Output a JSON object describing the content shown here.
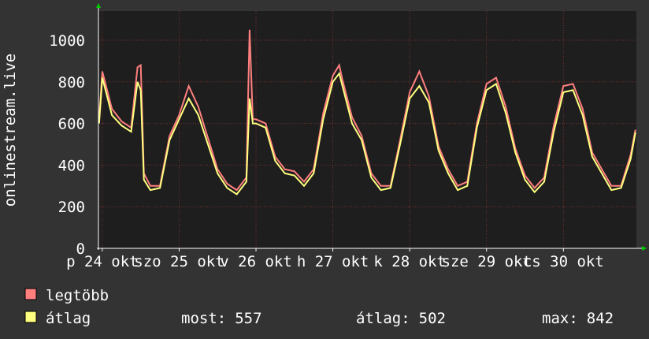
{
  "chart_data": {
    "type": "line",
    "ylabel": "onlinestream.live",
    "x": [
      -1,
      0,
      3,
      6,
      9,
      11,
      12,
      13,
      15,
      18,
      21,
      24,
      27,
      30,
      33,
      36,
      39,
      42,
      45,
      46,
      47,
      48,
      51,
      54,
      57,
      60,
      63,
      66,
      69,
      72,
      74,
      75,
      78,
      81,
      84,
      87,
      90,
      93,
      96,
      99,
      102,
      105,
      108,
      111,
      114,
      117,
      120,
      123,
      126,
      129,
      132,
      135,
      138,
      141,
      144,
      147,
      150,
      153,
      156,
      159,
      162,
      165,
      166.5
    ],
    "series": [
      {
        "name": "legtöbb",
        "color": "#ff7f7f",
        "values": [
          620,
          850,
          670,
          610,
          580,
          870,
          880,
          360,
          300,
          300,
          540,
          640,
          780,
          680,
          530,
          380,
          310,
          280,
          340,
          1050,
          620,
          620,
          600,
          440,
          380,
          370,
          320,
          380,
          650,
          830,
          880,
          810,
          630,
          540,
          360,
          300,
          300,
          520,
          750,
          850,
          730,
          490,
          380,
          300,
          320,
          600,
          790,
          820,
          680,
          480,
          350,
          290,
          340,
          590,
          780,
          790,
          670,
          460,
          380,
          300,
          300,
          450,
          570
        ]
      },
      {
        "name": "átlag",
        "color": "#ffff7f",
        "values": [
          600,
          820,
          640,
          590,
          560,
          800,
          760,
          330,
          280,
          290,
          520,
          620,
          720,
          640,
          500,
          360,
          290,
          260,
          320,
          720,
          600,
          600,
          580,
          420,
          360,
          350,
          300,
          360,
          620,
          800,
          840,
          780,
          600,
          520,
          340,
          280,
          290,
          500,
          720,
          780,
          700,
          470,
          360,
          280,
          300,
          580,
          760,
          790,
          650,
          460,
          330,
          270,
          320,
          560,
          750,
          760,
          640,
          440,
          360,
          280,
          290,
          430,
          557
        ]
      }
    ],
    "xlim": [
      -1.2,
      166.8
    ],
    "xticks": [
      {
        "value": 0,
        "label": "p 24 okt"
      },
      {
        "value": 24,
        "label": "szo 25 okt"
      },
      {
        "value": 48,
        "label": "v 26 okt"
      },
      {
        "value": 72,
        "label": "h 27 okt"
      },
      {
        "value": 96,
        "label": "k 28 okt"
      },
      {
        "value": 120,
        "label": "sze 29 okt"
      },
      {
        "value": 144,
        "label": "cs 30 okt"
      }
    ],
    "ylim": [
      0,
      1140
    ],
    "yticks": [
      0,
      200,
      400,
      600,
      800,
      1000
    ],
    "grid": true,
    "stats": [
      {
        "label": "most:",
        "value": 557
      },
      {
        "label": "átlag:",
        "value": 502
      },
      {
        "label": "max:",
        "value": 842
      }
    ]
  }
}
